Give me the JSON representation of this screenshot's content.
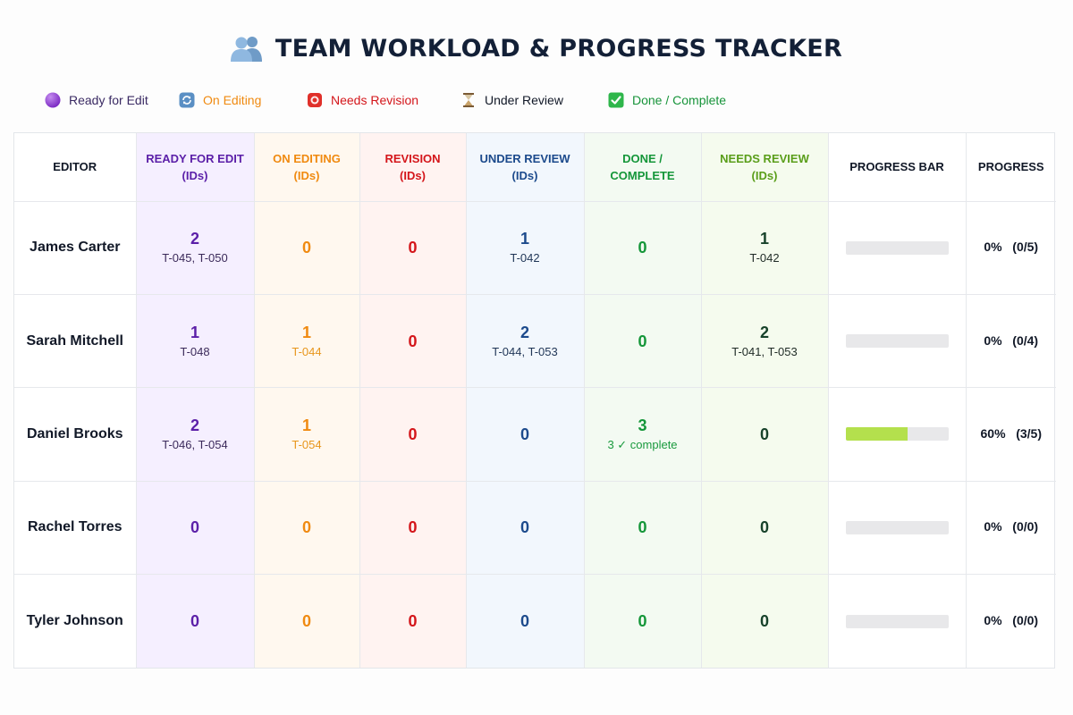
{
  "header": {
    "title": "TEAM WORKLOAD & PROGRESS TRACKER",
    "icon": "people-icon"
  },
  "legend": [
    {
      "label": "Ready for Edit",
      "icon": "purple-circle-icon",
      "color": "#3a2a63"
    },
    {
      "label": "On Editing",
      "icon": "arrows-cycle-icon",
      "color": "#f08a10"
    },
    {
      "label": "Needs Revision",
      "icon": "alert-icon",
      "color": "#d4161b"
    },
    {
      "label": "Under Review",
      "icon": "hourglass-icon",
      "color": "#111827"
    },
    {
      "label": "Done / Complete",
      "icon": "check-box-icon",
      "color": "#17943a"
    }
  ],
  "table": {
    "headers": {
      "editor": "EDITOR",
      "ready": [
        "READY FOR EDIT",
        "(IDs)"
      ],
      "editing": [
        "ON EDITING",
        "(IDs)"
      ],
      "revision": [
        "REVISION",
        "(IDs)"
      ],
      "review": [
        "UNDER REVIEW",
        "(IDs)"
      ],
      "done": [
        "DONE /",
        "COMPLETE"
      ],
      "needs_review": [
        "NEEDS REVIEW",
        "(IDs)"
      ],
      "progress_bar": "PROGRESS BAR",
      "progress": "PROGRESS"
    },
    "rows": [
      {
        "editor": "James Carter",
        "ready": {
          "count": "2",
          "ids": "T-045, T-050"
        },
        "editing": {
          "count": "0",
          "ids": ""
        },
        "revision": {
          "count": "0",
          "ids": ""
        },
        "review": {
          "count": "1",
          "ids": "T-042"
        },
        "done": {
          "count": "0",
          "ids": ""
        },
        "needs_review": {
          "count": "1",
          "ids": "T-042"
        },
        "progress_fraction": 0,
        "progress": "0%   (0/5)"
      },
      {
        "editor": "Sarah Mitchell",
        "ready": {
          "count": "1",
          "ids": "T-048"
        },
        "editing": {
          "count": "1",
          "ids": "T-044"
        },
        "revision": {
          "count": "0",
          "ids": ""
        },
        "review": {
          "count": "2",
          "ids": "T-044, T-053"
        },
        "done": {
          "count": "0",
          "ids": ""
        },
        "needs_review": {
          "count": "2",
          "ids": "T-041, T-053"
        },
        "progress_fraction": 0,
        "progress": "0%   (0/4)"
      },
      {
        "editor": "Daniel Brooks",
        "ready": {
          "count": "2",
          "ids": "T-046, T-054"
        },
        "editing": {
          "count": "1",
          "ids": "T-054"
        },
        "revision": {
          "count": "0",
          "ids": ""
        },
        "review": {
          "count": "0",
          "ids": ""
        },
        "done": {
          "count": "3",
          "ids": "3 ✓ complete"
        },
        "needs_review": {
          "count": "0",
          "ids": ""
        },
        "progress_fraction": 0.6,
        "progress": "60%   (3/5)"
      },
      {
        "editor": "Rachel Torres",
        "ready": {
          "count": "0",
          "ids": ""
        },
        "editing": {
          "count": "0",
          "ids": ""
        },
        "revision": {
          "count": "0",
          "ids": ""
        },
        "review": {
          "count": "0",
          "ids": ""
        },
        "done": {
          "count": "0",
          "ids": ""
        },
        "needs_review": {
          "count": "0",
          "ids": ""
        },
        "progress_fraction": 0,
        "progress": "0%   (0/0)"
      },
      {
        "editor": "Tyler Johnson",
        "ready": {
          "count": "0",
          "ids": ""
        },
        "editing": {
          "count": "0",
          "ids": ""
        },
        "revision": {
          "count": "0",
          "ids": ""
        },
        "review": {
          "count": "0",
          "ids": ""
        },
        "done": {
          "count": "0",
          "ids": ""
        },
        "needs_review": {
          "count": "0",
          "ids": ""
        },
        "progress_fraction": 0,
        "progress": "0%   (0/0)"
      }
    ]
  },
  "colors": {
    "ready": "#5b1fa8",
    "editing": "#f08a10",
    "revision": "#d4161b",
    "review": "#1c4a8c",
    "done": "#149639",
    "needs_review": "#5a9e1a",
    "bar_fill": "#b4e04d",
    "bar_track": "#e8e8ea"
  }
}
